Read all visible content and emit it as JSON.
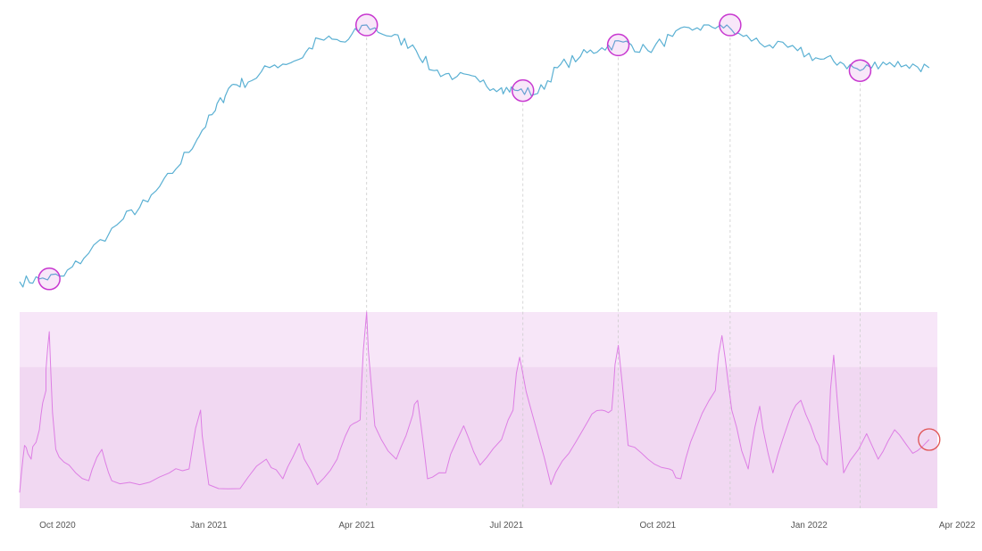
{
  "chart_data": [
    {
      "type": "line",
      "panel": "price",
      "title": "",
      "xlabel": "",
      "ylabel": "",
      "y_axis_shown": false,
      "grid": false,
      "x_range": [
        "2020-09-08",
        "2022-03-20"
      ],
      "ylim": [
        0,
        100
      ],
      "series": [
        {
          "color": "#5ab0d3",
          "points": [
            [
              "2020-09-08",
              10
            ],
            [
              "2020-09-20",
              11
            ],
            [
              "2020-10-05",
              12
            ],
            [
              "2020-10-20",
              20
            ],
            [
              "2020-11-10",
              32
            ],
            [
              "2020-11-25",
              38
            ],
            [
              "2020-12-10",
              48
            ],
            [
              "2020-12-25",
              60
            ],
            [
              "2021-01-05",
              70
            ],
            [
              "2021-01-15",
              79
            ],
            [
              "2021-01-25",
              80
            ],
            [
              "2021-02-10",
              86
            ],
            [
              "2021-02-25",
              88
            ],
            [
              "2021-03-10",
              95
            ],
            [
              "2021-03-25",
              94
            ],
            [
              "2021-04-07",
              100
            ],
            [
              "2021-04-22",
              96
            ],
            [
              "2021-05-05",
              93
            ],
            [
              "2021-05-18",
              84
            ],
            [
              "2021-06-01",
              82
            ],
            [
              "2021-06-15",
              80
            ],
            [
              "2021-06-28",
              78
            ],
            [
              "2021-07-08",
              77
            ],
            [
              "2021-07-20",
              76
            ],
            [
              "2021-08-01",
              85
            ],
            [
              "2021-08-15",
              89
            ],
            [
              "2021-08-28",
              92
            ],
            [
              "2021-09-10",
              94
            ],
            [
              "2021-09-25",
              91
            ],
            [
              "2021-10-10",
              96
            ],
            [
              "2021-10-25",
              99
            ],
            [
              "2021-11-08",
              100
            ],
            [
              "2021-11-22",
              96
            ],
            [
              "2021-12-08",
              93
            ],
            [
              "2021-12-25",
              91
            ],
            [
              "2022-01-08",
              88
            ],
            [
              "2022-01-20",
              87
            ],
            [
              "2022-02-01",
              84
            ],
            [
              "2022-02-15",
              87
            ],
            [
              "2022-03-01",
              86
            ],
            [
              "2022-03-15",
              85
            ]
          ]
        }
      ],
      "highlights": [
        {
          "date": "2020-09-26",
          "value": 11
        },
        {
          "date": "2021-04-07",
          "value": 100
        },
        {
          "date": "2021-07-11",
          "value": 77
        },
        {
          "date": "2021-09-07",
          "value": 93
        },
        {
          "date": "2021-11-14",
          "value": 100
        },
        {
          "date": "2022-02-01",
          "value": 84
        }
      ],
      "highlight_color": "#c838d0"
    },
    {
      "type": "line",
      "panel": "indicator",
      "title": "",
      "xlabel": "",
      "ylabel": "",
      "y_axis_shown": false,
      "grid": false,
      "x_range": [
        "2020-09-08",
        "2022-03-20"
      ],
      "ylim": [
        0,
        100
      ],
      "bands": [
        {
          "from": 0,
          "to": 72,
          "color": "#f1d8f2"
        },
        {
          "from": 72,
          "to": 100,
          "color": "#f7e6f8"
        }
      ],
      "series": [
        {
          "color": "#dd7ee4",
          "points": [
            [
              "2020-09-08",
              8
            ],
            [
              "2020-09-11",
              32
            ],
            [
              "2020-09-15",
              25
            ],
            [
              "2020-09-20",
              40
            ],
            [
              "2020-09-24",
              60
            ],
            [
              "2020-09-26",
              90
            ],
            [
              "2020-09-30",
              30
            ],
            [
              "2020-10-08",
              22
            ],
            [
              "2020-10-20",
              14
            ],
            [
              "2020-10-28",
              30
            ],
            [
              "2020-11-03",
              14
            ],
            [
              "2020-11-20",
              12
            ],
            [
              "2020-12-08",
              18
            ],
            [
              "2020-12-20",
              20
            ],
            [
              "2020-12-27",
              50
            ],
            [
              "2021-01-01",
              12
            ],
            [
              "2021-01-20",
              10
            ],
            [
              "2021-02-05",
              25
            ],
            [
              "2021-02-15",
              15
            ],
            [
              "2021-02-25",
              33
            ],
            [
              "2021-03-08",
              12
            ],
            [
              "2021-03-20",
              25
            ],
            [
              "2021-03-28",
              42
            ],
            [
              "2021-04-03",
              45
            ],
            [
              "2021-04-07",
              100
            ],
            [
              "2021-04-12",
              42
            ],
            [
              "2021-04-25",
              25
            ],
            [
              "2021-05-04",
              45
            ],
            [
              "2021-05-08",
              55
            ],
            [
              "2021-05-14",
              15
            ],
            [
              "2021-05-25",
              18
            ],
            [
              "2021-06-05",
              42
            ],
            [
              "2021-06-15",
              22
            ],
            [
              "2021-06-28",
              35
            ],
            [
              "2021-07-05",
              50
            ],
            [
              "2021-07-09",
              77
            ],
            [
              "2021-07-16",
              50
            ],
            [
              "2021-07-28",
              12
            ],
            [
              "2021-08-08",
              28
            ],
            [
              "2021-08-20",
              45
            ],
            [
              "2021-08-28",
              50
            ],
            [
              "2021-09-03",
              50
            ],
            [
              "2021-09-07",
              83
            ],
            [
              "2021-09-13",
              32
            ],
            [
              "2021-09-25",
              25
            ],
            [
              "2021-10-08",
              20
            ],
            [
              "2021-10-15",
              15
            ],
            [
              "2021-10-25",
              42
            ],
            [
              "2021-11-05",
              60
            ],
            [
              "2021-11-09",
              88
            ],
            [
              "2021-11-15",
              50
            ],
            [
              "2021-11-25",
              20
            ],
            [
              "2021-12-02",
              52
            ],
            [
              "2021-12-10",
              18
            ],
            [
              "2021-12-20",
              45
            ],
            [
              "2021-12-27",
              55
            ],
            [
              "2022-01-05",
              35
            ],
            [
              "2022-01-12",
              22
            ],
            [
              "2022-01-16",
              78
            ],
            [
              "2022-01-22",
              18
            ],
            [
              "2022-02-05",
              38
            ],
            [
              "2022-02-12",
              25
            ],
            [
              "2022-02-22",
              40
            ],
            [
              "2022-03-05",
              28
            ],
            [
              "2022-03-15",
              35
            ]
          ]
        }
      ],
      "alert_marker": {
        "date": "2022-03-15",
        "value": 35,
        "color": "#e05252"
      }
    }
  ],
  "x_axis": {
    "ticks": [
      {
        "date": "2020-10-01",
        "label": "Oct 2020"
      },
      {
        "date": "2021-01-01",
        "label": "Jan 2021"
      },
      {
        "date": "2021-04-01",
        "label": "Apr 2021"
      },
      {
        "date": "2021-07-01",
        "label": "Jul 2021"
      },
      {
        "date": "2021-10-01",
        "label": "Oct 2021"
      },
      {
        "date": "2022-01-01",
        "label": "Jan 2022"
      },
      {
        "date": "2022-04-01",
        "label": "Apr 2022"
      }
    ]
  },
  "guide_color": "#cccccc"
}
